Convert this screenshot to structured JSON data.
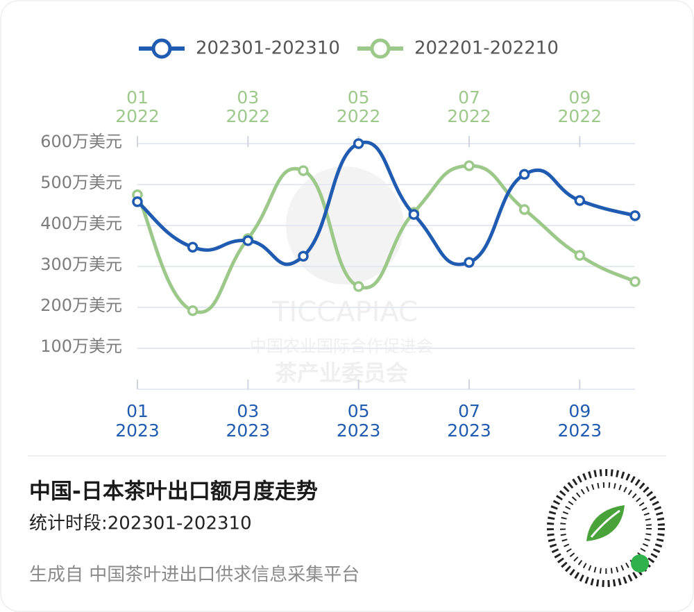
{
  "chart_data": {
    "type": "line",
    "title": "中国-日本茶叶出口额月度走势",
    "subtitle": "统计时段:202301-202310",
    "footer": "生成自 中国茶叶进出口供求信息采集平台",
    "watermark": [
      "TICCAPIAC",
      "中国农业国际合作促进会",
      "茶产业委员会"
    ],
    "categories": [
      [
        "01",
        "2023"
      ],
      null,
      [
        "03",
        "2023"
      ],
      null,
      [
        "05",
        "2023"
      ],
      null,
      [
        "07",
        "2023"
      ],
      null,
      [
        "09",
        "2023"
      ],
      null
    ],
    "top_categories": [
      [
        "01",
        "2022"
      ],
      null,
      [
        "03",
        "2022"
      ],
      null,
      [
        "05",
        "2022"
      ],
      null,
      [
        "07",
        "2022"
      ],
      null,
      [
        "09",
        "2022"
      ],
      null
    ],
    "series": [
      {
        "name": "202301-202310",
        "color": "#1f5bb0",
        "values": [
          458,
          347,
          363,
          325,
          600,
          427,
          310,
          525,
          461,
          424
        ]
      },
      {
        "name": "202201-202210",
        "color": "#9cc98a",
        "values": [
          475,
          192,
          368,
          534,
          251,
          432,
          546,
          439,
          327,
          263
        ]
      }
    ],
    "ylim": [
      0,
      600
    ],
    "yticks": [
      {
        "value": 100,
        "label": "100万美元"
      },
      {
        "value": 200,
        "label": "200万美元"
      },
      {
        "value": 300,
        "label": "300万美元"
      },
      {
        "value": 400,
        "label": "400万美元"
      },
      {
        "value": 500,
        "label": "500万美元"
      },
      {
        "value": 600,
        "label": "600万美元"
      }
    ],
    "grid": true
  }
}
